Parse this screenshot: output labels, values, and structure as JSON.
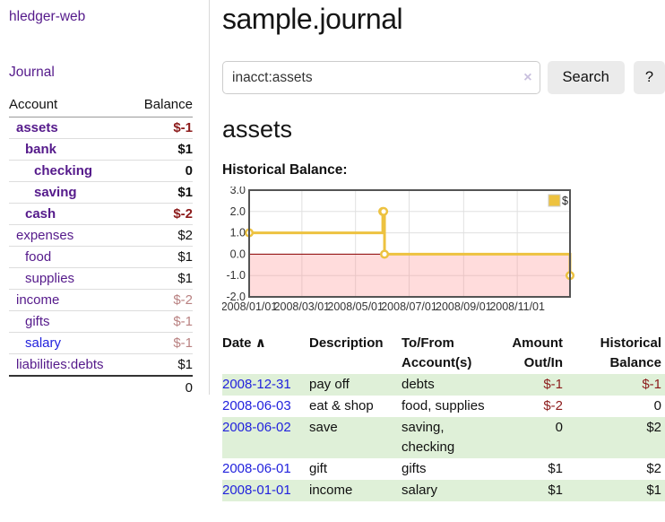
{
  "colors": {
    "link_purple": "#551a8b",
    "link_blue": "#2222dd",
    "negative_strong": "#8c1b1b",
    "negative_light": "#b98181",
    "row_stripe_green": "#dff0d8",
    "series_yellow": "#edc240"
  },
  "sidebar": {
    "brand": "hledger-web",
    "nav_journal": "Journal",
    "accounts": {
      "col_account": "Account",
      "col_balance": "Balance",
      "rows": [
        {
          "name": "assets",
          "balance": "$-1",
          "depth": 0,
          "bold": true,
          "negative": "strong",
          "link_color": "purple"
        },
        {
          "name": "bank",
          "balance": "$1",
          "depth": 1,
          "bold": true,
          "negative": "none",
          "link_color": "purple"
        },
        {
          "name": "checking",
          "balance": "0",
          "depth": 2,
          "bold": true,
          "negative": "none",
          "link_color": "purple"
        },
        {
          "name": "saving",
          "balance": "$1",
          "depth": 2,
          "bold": true,
          "negative": "none",
          "link_color": "purple"
        },
        {
          "name": "cash",
          "balance": "$-2",
          "depth": 1,
          "bold": true,
          "negative": "strong",
          "link_color": "purple"
        },
        {
          "name": "expenses",
          "balance": "$2",
          "depth": 0,
          "bold": false,
          "negative": "none",
          "link_color": "purple"
        },
        {
          "name": "food",
          "balance": "$1",
          "depth": 1,
          "bold": false,
          "negative": "none",
          "link_color": "purple"
        },
        {
          "name": "supplies",
          "balance": "$1",
          "depth": 1,
          "bold": false,
          "negative": "none",
          "link_color": "purple"
        },
        {
          "name": "income",
          "balance": "$-2",
          "depth": 0,
          "bold": false,
          "negative": "light",
          "link_color": "purple"
        },
        {
          "name": "gifts",
          "balance": "$-1",
          "depth": 1,
          "bold": false,
          "negative": "light",
          "link_color": "purple"
        },
        {
          "name": "salary",
          "balance": "$-1",
          "depth": 1,
          "bold": false,
          "negative": "light",
          "link_color": "blue"
        },
        {
          "name": "liabilities:debts",
          "balance": "$1",
          "depth": 0,
          "bold": false,
          "negative": "none",
          "link_color": "purple"
        }
      ],
      "total": "0"
    }
  },
  "main": {
    "title": "sample.journal",
    "search": {
      "value": "inacct:assets",
      "clear_icon": "×",
      "search_button": "Search",
      "help_button": "?"
    },
    "account_heading": "assets"
  },
  "chart_data": {
    "type": "line",
    "step": true,
    "title": "Historical Balance:",
    "series": [
      {
        "name": "$",
        "color": "#edc240",
        "points": [
          [
            "2008-01-01",
            1
          ],
          [
            "2008-06-01",
            2
          ],
          [
            "2008-06-02",
            2
          ],
          [
            "2008-06-03",
            0
          ],
          [
            "2008-12-31",
            -1
          ]
        ]
      }
    ],
    "x_ticks": [
      "2008/01/01",
      "2008/03/01",
      "2008/05/01",
      "2008/07/01",
      "2008/09/01",
      "2008/11/01"
    ],
    "y_ticks": [
      "3.0",
      "2.0",
      "1.0",
      "0.0",
      "-1.0",
      "-2.0"
    ],
    "xlim": [
      "2008-01-01",
      "2008-12-31"
    ],
    "ylim": [
      -2,
      3
    ],
    "grid": true,
    "legend": {
      "label": "$",
      "position": "top-right"
    },
    "zero_line_color": "#8b0000",
    "negative_region_color": "rgba(255,140,140,0.30)"
  },
  "register": {
    "headers": {
      "date": "Date",
      "sort_icon": "∧",
      "description": "Description",
      "accounts": "To/From Account(s)",
      "amount": "Amount Out/In",
      "balance": "Historical Balance"
    },
    "rows": [
      {
        "date": "2008-12-31",
        "description": "pay off",
        "accounts": "debts",
        "amount": "$-1",
        "balance": "$-1",
        "amount_negative": true,
        "balance_negative": true
      },
      {
        "date": "2008-06-03",
        "description": "eat & shop",
        "accounts": "food, supplies",
        "amount": "$-2",
        "balance": "0",
        "amount_negative": true,
        "balance_negative": false
      },
      {
        "date": "2008-06-02",
        "description": "save",
        "accounts": "saving, checking",
        "amount": "0",
        "balance": "$2",
        "amount_negative": false,
        "balance_negative": false
      },
      {
        "date": "2008-06-01",
        "description": "gift",
        "accounts": "gifts",
        "amount": "$1",
        "balance": "$2",
        "amount_negative": false,
        "balance_negative": false
      },
      {
        "date": "2008-01-01",
        "description": "income",
        "accounts": "salary",
        "amount": "$1",
        "balance": "$1",
        "amount_negative": false,
        "balance_negative": false
      }
    ]
  }
}
